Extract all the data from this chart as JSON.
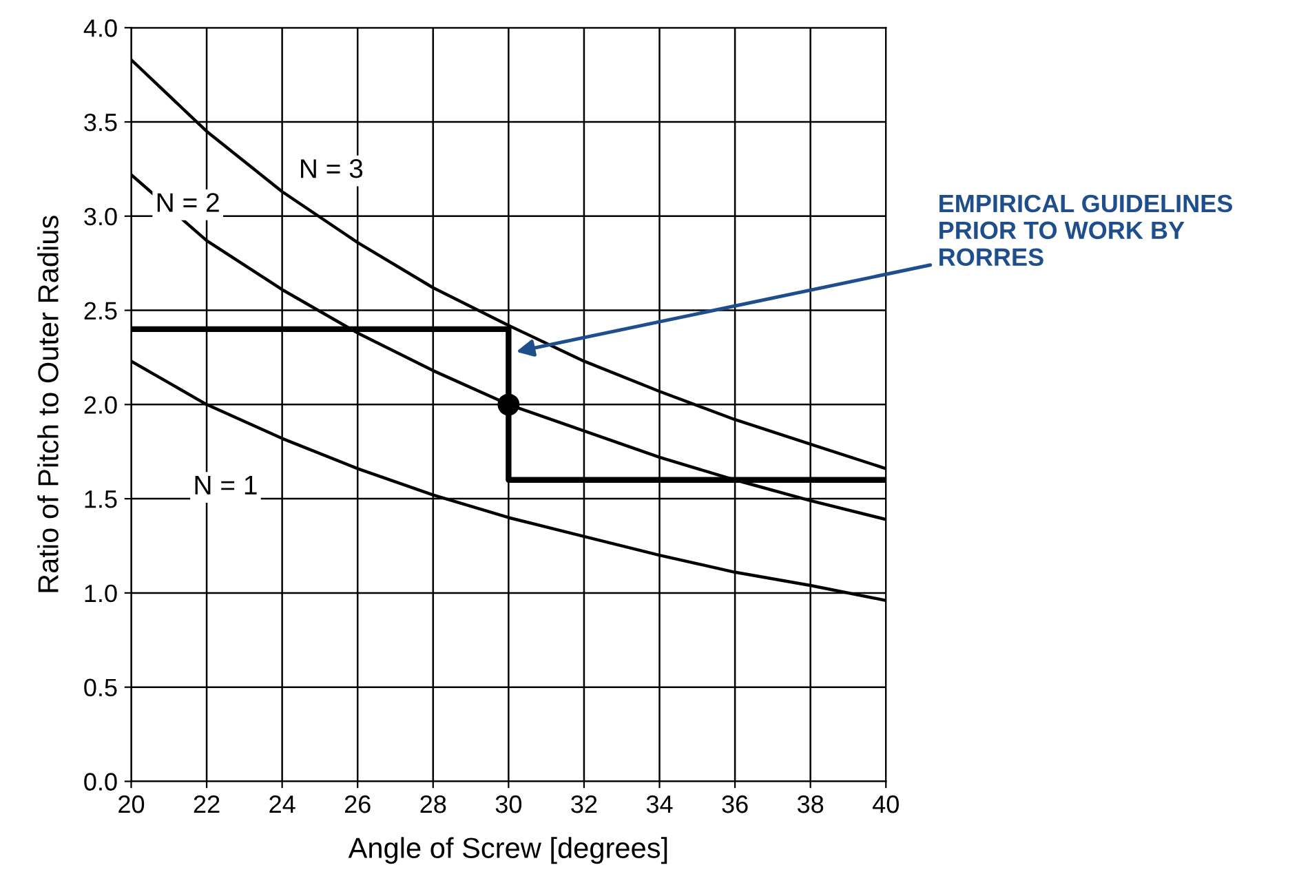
{
  "chart_data": {
    "type": "line",
    "xlabel": "Angle of Screw [degrees]",
    "ylabel": "Ratio of Pitch to Outer Radius",
    "series": [
      {
        "name": "N = 3",
        "color": "#000000",
        "x": [
          20,
          22,
          24,
          26,
          28,
          30,
          32,
          34,
          36,
          38,
          40
        ],
        "values": [
          3.83,
          3.45,
          3.13,
          2.86,
          2.62,
          2.42,
          2.23,
          2.07,
          1.92,
          1.79,
          1.66
        ]
      },
      {
        "name": "N = 2",
        "color": "#000000",
        "x": [
          20,
          22,
          24,
          26,
          28,
          30,
          32,
          34,
          36,
          38,
          40
        ],
        "values": [
          3.22,
          2.87,
          2.61,
          2.38,
          2.18,
          2.0,
          1.86,
          1.72,
          1.6,
          1.49,
          1.39
        ]
      },
      {
        "name": "N = 1",
        "color": "#000000",
        "x": [
          20,
          22,
          24,
          26,
          28,
          30,
          32,
          34,
          36,
          38,
          40
        ],
        "values": [
          2.23,
          2.0,
          1.82,
          1.66,
          1.52,
          1.4,
          1.3,
          1.2,
          1.11,
          1.04,
          0.96
        ]
      },
      {
        "type": "line",
        "color": "#000000",
        "x": [
          20,
          30,
          30,
          40
        ],
        "values": [
          2.4,
          2.4,
          1.6,
          1.6
        ]
      },
      {
        "type": "scatter",
        "color": "#000000",
        "marker": "circle",
        "x": [
          30
        ],
        "values": [
          2.0
        ]
      }
    ],
    "annotations": [
      {
        "text": "EMPIRICAL GUIDELINES\nPRIOR TO WORK BY\nRORRES",
        "x": 30.2,
        "y": 2.28
      }
    ],
    "xlim": [
      20,
      40
    ],
    "xticks": [
      20,
      22,
      24,
      26,
      28,
      30,
      32,
      34,
      36,
      38,
      40
    ],
    "ylim": [
      0,
      4.0
    ],
    "yticks": [
      {
        "value": 0,
        "label": "0.0"
      },
      {
        "value": 0.5,
        "label": "0.5"
      },
      {
        "value": 1.0,
        "label": "1.0"
      },
      {
        "value": 1.5,
        "label": "1.5"
      },
      {
        "value": 2.0,
        "label": "2.0"
      },
      {
        "value": 2.5,
        "label": "2.5"
      },
      {
        "value": 3.0,
        "label": "3.0"
      },
      {
        "value": 3.5,
        "label": "3.5"
      },
      {
        "value": 4.0,
        "label": "4.0"
      }
    ],
    "grid": true,
    "legend": false
  }
}
